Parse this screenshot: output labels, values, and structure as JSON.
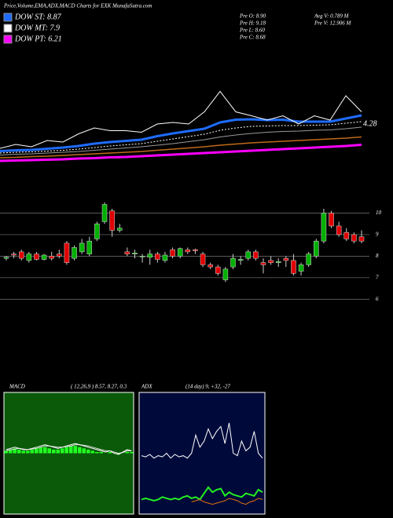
{
  "header": {
    "title": "Price,Volume,EMA,ADX,MACD Charts for EXK MunafaSutra.com",
    "legend": [
      {
        "label": "DOW ST: 8.87",
        "color": "#1e6cff"
      },
      {
        "label": "DOW MT: 7.9",
        "color": "#ffffff"
      },
      {
        "label": "DOW PT: 6.21",
        "color": "#ff00ff"
      }
    ],
    "stats": [
      "Pre  O: 8.90",
      "Pre  H: 9.18",
      "Pre  L: 8.60",
      "Pre  C: 8.68",
      "Avg V: 0.789  M",
      "Pre  V: 12.906  M"
    ]
  },
  "chart_data": [
    {
      "type": "line",
      "annotation": "4.28",
      "ylim": [
        3,
        6
      ],
      "series": [
        {
          "color": "#ff00ff",
          "width": 3,
          "values": [
            3.2,
            3.21,
            3.22,
            3.23,
            3.24,
            3.26,
            3.27,
            3.29,
            3.3,
            3.32,
            3.34,
            3.36,
            3.38,
            3.4,
            3.42,
            3.44,
            3.46,
            3.48,
            3.5,
            3.52,
            3.54,
            3.56,
            3.58,
            3.61
          ]
        },
        {
          "color": "#c06a1a",
          "width": 1.5,
          "values": [
            3.28,
            3.29,
            3.31,
            3.32,
            3.34,
            3.36,
            3.38,
            3.4,
            3.42,
            3.44,
            3.47,
            3.5,
            3.53,
            3.56,
            3.6,
            3.63,
            3.66,
            3.68,
            3.7,
            3.72,
            3.74,
            3.76,
            3.78,
            3.81
          ]
        },
        {
          "color": "#9a9a9a",
          "width": 1,
          "values": [
            3.35,
            3.37,
            3.38,
            3.4,
            3.42,
            3.44,
            3.47,
            3.5,
            3.53,
            3.56,
            3.6,
            3.64,
            3.69,
            3.74,
            3.81,
            3.86,
            3.9,
            3.93,
            3.95,
            3.96,
            3.98,
            3.99,
            4.02,
            4.06
          ]
        },
        {
          "color": "#ffffff",
          "width": 1,
          "dash": true,
          "values": [
            3.4,
            3.42,
            3.43,
            3.45,
            3.47,
            3.5,
            3.54,
            3.58,
            3.61,
            3.64,
            3.7,
            3.76,
            3.82,
            3.88,
            3.98,
            4.04,
            4.08,
            4.09,
            4.1,
            4.1,
            4.11,
            4.12,
            4.16,
            4.2
          ]
        },
        {
          "color": "#1e6cff",
          "width": 3,
          "values": [
            3.45,
            3.47,
            3.48,
            3.51,
            3.54,
            3.58,
            3.64,
            3.68,
            3.71,
            3.74,
            3.83,
            3.9,
            3.96,
            4.02,
            4.18,
            4.25,
            4.26,
            4.24,
            4.25,
            4.2,
            4.2,
            4.2,
            4.28,
            4.36
          ]
        },
        {
          "color": "#ffffff",
          "width": 1,
          "values": [
            3.52,
            3.62,
            3.56,
            3.72,
            3.68,
            3.89,
            4.04,
            3.97,
            3.97,
            3.93,
            4.14,
            4.18,
            4.14,
            4.45,
            4.97,
            4.45,
            4.35,
            4.24,
            4.35,
            4.14,
            4.35,
            4.24,
            4.86,
            4.45
          ]
        }
      ]
    },
    {
      "type": "candlestick",
      "ylim": [
        5.5,
        10.6
      ],
      "yticks": [
        10,
        9,
        8,
        7,
        6
      ],
      "grid": true,
      "up_color": "#00b000",
      "down_color": "#e00000",
      "open": [
        7.9,
        8.1,
        8.2,
        7.8,
        8.1,
        7.85,
        8.0,
        8.1,
        8.6,
        7.9,
        8.2,
        8.1,
        8.8,
        9.6,
        10.1,
        9.2,
        8.2,
        8.1,
        8.0,
        7.95,
        8.1,
        7.8,
        8.3,
        8.0,
        8.3,
        8.3,
        8.1,
        7.6,
        7.5,
        6.9,
        7.5,
        7.8,
        7.9,
        8.2,
        7.7,
        7.8,
        7.7,
        7.9,
        7.8,
        7.3,
        7.6,
        8.0,
        8.7,
        10.0,
        9.4,
        9.1,
        9.0,
        8.9
      ],
      "high": [
        8.0,
        8.2,
        8.3,
        8.2,
        8.2,
        8.1,
        8.2,
        8.3,
        8.7,
        8.5,
        8.8,
        8.9,
        9.6,
        10.5,
        10.2,
        9.5,
        8.4,
        8.3,
        8.1,
        8.3,
        8.2,
        8.2,
        8.4,
        8.4,
        8.4,
        8.35,
        8.2,
        7.7,
        7.6,
        7.5,
        8.1,
        8.0,
        8.3,
        8.3,
        7.9,
        8.0,
        7.9,
        8.0,
        8.1,
        7.7,
        8.2,
        8.8,
        10.2,
        10.1,
        9.6,
        9.3,
        9.1,
        9.2
      ],
      "low": [
        7.8,
        7.9,
        7.8,
        7.7,
        7.8,
        7.8,
        7.8,
        7.9,
        7.6,
        7.8,
        8.1,
        8.0,
        8.7,
        9.5,
        8.9,
        9.1,
        8.0,
        7.9,
        7.7,
        7.6,
        7.7,
        7.7,
        7.9,
        7.9,
        8.1,
        8.1,
        7.5,
        7.4,
        7.1,
        6.8,
        7.4,
        7.6,
        7.8,
        7.8,
        7.2,
        7.6,
        7.5,
        7.5,
        7.1,
        7.1,
        7.5,
        7.9,
        8.6,
        9.3,
        8.9,
        8.7,
        8.6,
        8.6
      ],
      "close": [
        7.95,
        8.05,
        7.9,
        8.1,
        7.85,
        8.05,
        7.9,
        8.0,
        7.7,
        8.4,
        8.6,
        8.7,
        9.5,
        10.4,
        9.2,
        9.3,
        8.1,
        8.15,
        8.0,
        8.1,
        7.85,
        8.05,
        8.0,
        8.35,
        8.2,
        8.25,
        7.6,
        7.5,
        7.2,
        7.4,
        7.9,
        7.85,
        8.2,
        7.9,
        7.6,
        7.7,
        7.75,
        7.8,
        7.2,
        7.6,
        8.1,
        8.7,
        10.0,
        9.4,
        9.0,
        8.8,
        8.7,
        8.7
      ]
    },
    {
      "type": "macd",
      "title": "MACD",
      "subtitle": "( 12,26,9 ) 8.57, 8.27, 0.3",
      "ylim": [
        -5,
        5
      ],
      "background": "#0a5a0a",
      "hist_color": "#22ff22",
      "histogram": [
        0.2,
        0.3,
        0.4,
        0.3,
        0.2,
        0.2,
        0.3,
        0.4,
        0.5,
        0.5,
        0.4,
        0.3,
        0.3,
        0.4,
        0.5,
        0.6,
        0.6,
        0.5,
        0.4,
        0.3,
        0.2,
        0.1,
        0.1,
        0.0,
        0.1,
        0.0,
        -0.1,
        0.0,
        0.1,
        0.1
      ],
      "series": [
        {
          "color": "#dddddd",
          "values": [
            0.2,
            0.3,
            0.35,
            0.4,
            0.35,
            0.3,
            0.35,
            0.4,
            0.5,
            0.6,
            0.6,
            0.55,
            0.5,
            0.5,
            0.55,
            0.6,
            0.7,
            0.7,
            0.65,
            0.6,
            0.5,
            0.4,
            0.3,
            0.2,
            0.2,
            0.1,
            0.0,
            0.05,
            0.2,
            0.2
          ]
        },
        {
          "color": "#ffffff",
          "values": [
            0.3,
            0.4,
            0.5,
            0.4,
            0.3,
            0.3,
            0.4,
            0.5,
            0.6,
            0.7,
            0.6,
            0.5,
            0.4,
            0.5,
            0.6,
            0.7,
            0.8,
            0.7,
            0.6,
            0.5,
            0.4,
            0.3,
            0.2,
            0.1,
            0.2,
            0.0,
            -0.1,
            0.1,
            0.3,
            0.2
          ]
        }
      ]
    },
    {
      "type": "adx",
      "title": "ADX",
      "subtitle": "(14  day) 9, +32, -27",
      "ylim": [
        0,
        100
      ],
      "background": "#000a3a",
      "series": [
        {
          "color": "#ffffff",
          "values": [
            48,
            47,
            49,
            46,
            48,
            47,
            50,
            46,
            49,
            47,
            48,
            46,
            50,
            65,
            55,
            60,
            70,
            62,
            68,
            72,
            58,
            75,
            50,
            48,
            60,
            52,
            55,
            68,
            50,
            46
          ]
        },
        {
          "color": "#22ee22",
          "width": 2,
          "values": [
            12,
            13,
            12,
            11,
            12,
            14,
            13,
            12,
            13,
            12,
            14,
            15,
            13,
            14,
            12,
            17,
            22,
            18,
            20,
            21,
            15,
            18,
            16,
            15,
            14,
            17,
            16,
            15,
            20,
            18
          ]
        },
        {
          "color": "#e07010",
          "values": [
            null,
            null,
            null,
            null,
            null,
            null,
            null,
            null,
            null,
            null,
            null,
            null,
            10,
            11,
            12,
            10,
            9,
            8,
            9,
            10,
            11,
            13,
            12,
            11,
            9,
            8,
            10,
            11,
            13,
            12
          ]
        }
      ]
    }
  ]
}
